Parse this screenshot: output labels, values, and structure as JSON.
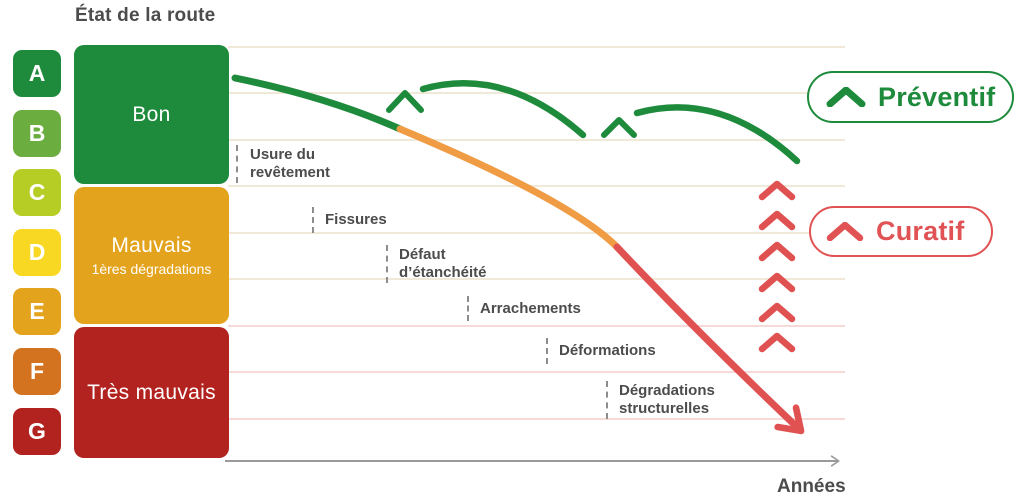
{
  "title": "État de la route",
  "x_axis_label": "Années",
  "grades": [
    {
      "label": "A",
      "color": "#1e8b3c"
    },
    {
      "label": "B",
      "color": "#6cad40"
    },
    {
      "label": "C",
      "color": "#b6cd26"
    },
    {
      "label": "D",
      "color": "#f8d822"
    },
    {
      "label": "E",
      "color": "#e4a31c"
    },
    {
      "label": "F",
      "color": "#d4731f"
    },
    {
      "label": "G",
      "color": "#b2231f"
    }
  ],
  "bands": [
    {
      "label": "Bon",
      "sublabel": "",
      "color": "#1e8b3c"
    },
    {
      "label": "Mauvais",
      "sublabel": "1ères dégradations",
      "color": "#e4a31c"
    },
    {
      "label": "Très mauvais",
      "sublabel": "",
      "color": "#b2231f"
    }
  ],
  "annotations": [
    {
      "lines": [
        "Usure du",
        "revêtement"
      ]
    },
    {
      "lines": [
        "Fissures"
      ]
    },
    {
      "lines": [
        "Défaut",
        "d’étanchéité"
      ]
    },
    {
      "lines": [
        "Arrachements"
      ]
    },
    {
      "lines": [
        "Déformations"
      ]
    },
    {
      "lines": [
        "Dégradations",
        "structurelles"
      ]
    }
  ],
  "legend": {
    "preventif": {
      "label": "Préventif",
      "color": "#1e8b3c"
    },
    "curatif": {
      "label": "Curatif",
      "color": "#e05253"
    }
  },
  "colors": {
    "curve_green": "#1e8b3c",
    "curve_orange": "#f09c44",
    "curve_red": "#e05151",
    "grid_beige": "#f1e9d7",
    "grid_pink": "#f7dad8",
    "axis_gray": "#9a9a9a",
    "text_gray": "#4c4c4c"
  }
}
